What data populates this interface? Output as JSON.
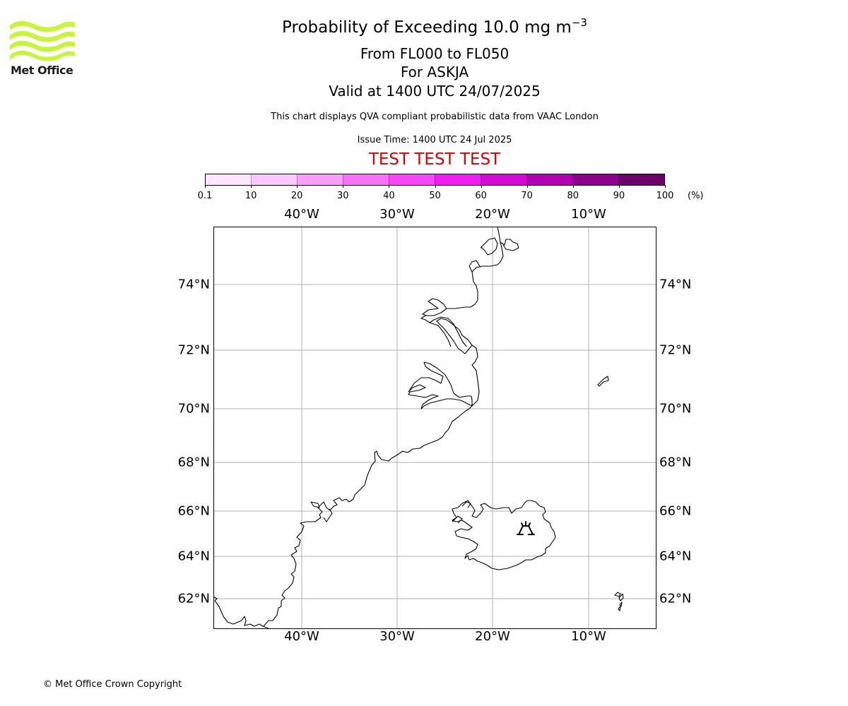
{
  "header": {
    "title_prefix": "Probability of Exceeding 10.0 mg m",
    "title_exponent": "−3",
    "levels": "From FL000 to FL050",
    "volcano": "For ASKJA",
    "valid": "Valid at 1400 UTC 24/07/2025",
    "subtitle": "This chart displays QVA compliant probabilistic data from VAAC London",
    "issue_time": "Issue Time: 1400 UTC 24 Jul 2025",
    "test_banner": "TEST TEST TEST"
  },
  "logo": {
    "text": "Met Office",
    "wave_color": "#c8f53a"
  },
  "colorbar": {
    "ticks": [
      "0.1",
      "10",
      "20",
      "30",
      "40",
      "50",
      "60",
      "70",
      "80",
      "90",
      "100"
    ],
    "unit": "(%)",
    "colors": [
      "#fee6fe",
      "#fcc8fc",
      "#fa9efa",
      "#f872f8",
      "#f646f6",
      "#f01ef0",
      "#d40ad4",
      "#b200b2",
      "#8e008e",
      "#6b006b"
    ]
  },
  "map": {
    "lon_labels": [
      "40°W",
      "30°W",
      "20°W",
      "10°W"
    ],
    "lat_labels": [
      "74°N",
      "72°N",
      "70°N",
      "68°N",
      "66°N",
      "64°N",
      "62°N"
    ],
    "gridline_color": "#b0b0b0",
    "volcano_symbol": "volcano-icon"
  },
  "footer": {
    "copyright": "© Met Office Crown Copyright"
  }
}
